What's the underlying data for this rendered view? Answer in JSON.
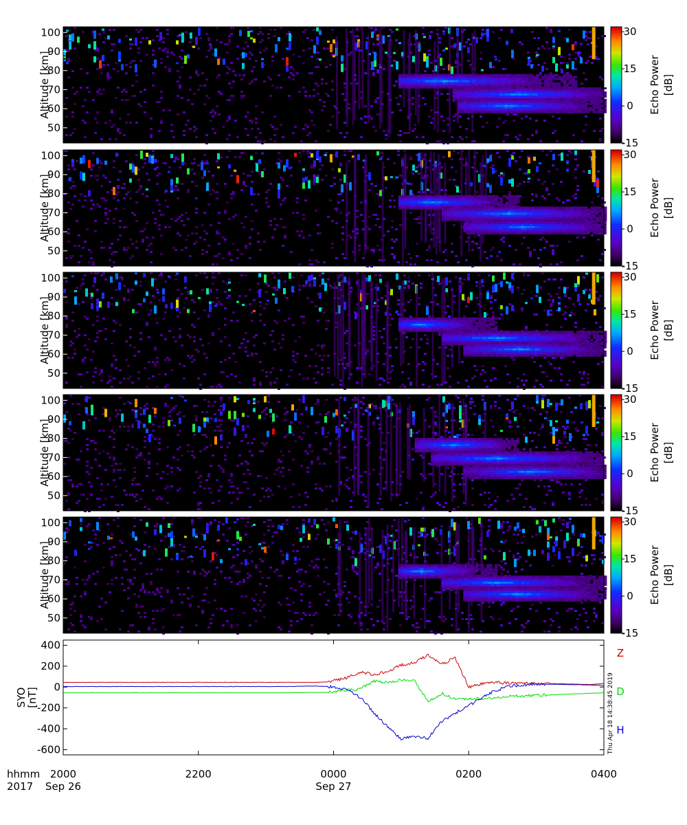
{
  "chart_data": [
    {
      "type": "heatmap",
      "panel": 1,
      "ylabel": "Altitude [km]",
      "yticks": [
        50,
        60,
        70,
        80,
        90,
        100
      ],
      "ylim": [
        42,
        103
      ],
      "colorbar": {
        "label1": "Echo Power",
        "label2": "[dB]",
        "ticks": [
          -15,
          0,
          15,
          30
        ],
        "range": [
          -15,
          32
        ]
      },
      "echo_layers": [
        {
          "start_frac": 0.62,
          "end_frac": 0.95,
          "alt_km": 75,
          "peak_frac": 0.7
        },
        {
          "start_frac": 0.72,
          "end_frac": 1.0,
          "alt_km": 68,
          "peak_frac": 0.84
        },
        {
          "start_frac": 0.73,
          "end_frac": 1.0,
          "alt_km": 62,
          "peak_frac": 0.82
        }
      ]
    },
    {
      "type": "heatmap",
      "panel": 2,
      "ylabel": "Altitude [km]",
      "yticks": [
        50,
        60,
        70,
        80,
        90,
        100
      ],
      "ylim": [
        42,
        103
      ],
      "colorbar": {
        "label1": "Echo Power",
        "label2": "[dB]",
        "ticks": [
          -15,
          0,
          15,
          30
        ],
        "range": [
          -15,
          32
        ]
      },
      "echo_layers": [
        {
          "start_frac": 0.62,
          "end_frac": 0.84,
          "alt_km": 76,
          "peak_frac": 0.68
        },
        {
          "start_frac": 0.7,
          "end_frac": 1.0,
          "alt_km": 70,
          "peak_frac": 0.82
        },
        {
          "start_frac": 0.74,
          "end_frac": 1.0,
          "alt_km": 63,
          "peak_frac": 0.85
        }
      ]
    },
    {
      "type": "heatmap",
      "panel": 3,
      "ylabel": "Altitude [km]",
      "yticks": [
        50,
        60,
        70,
        80,
        90,
        100
      ],
      "ylim": [
        42,
        103
      ],
      "colorbar": {
        "label1": "Echo Power",
        "label2": "[dB]",
        "ticks": [
          -15,
          0,
          15,
          30
        ],
        "range": [
          -15,
          32
        ]
      },
      "echo_layers": [
        {
          "start_frac": 0.62,
          "end_frac": 0.8,
          "alt_km": 76,
          "peak_frac": 0.66
        },
        {
          "start_frac": 0.7,
          "end_frac": 1.0,
          "alt_km": 69,
          "peak_frac": 0.8
        },
        {
          "start_frac": 0.74,
          "end_frac": 1.0,
          "alt_km": 63,
          "peak_frac": 0.84
        }
      ]
    },
    {
      "type": "heatmap",
      "panel": 4,
      "ylabel": "Altitude [km]",
      "yticks": [
        50,
        60,
        70,
        80,
        90,
        100
      ],
      "ylim": [
        42,
        103
      ],
      "colorbar": {
        "label1": "Echo Power",
        "label2": "[dB]",
        "ticks": [
          -15,
          0,
          15,
          30
        ],
        "range": [
          -15,
          32
        ]
      },
      "echo_layers": [
        {
          "start_frac": 0.65,
          "end_frac": 0.84,
          "alt_km": 77,
          "peak_frac": 0.72
        },
        {
          "start_frac": 0.68,
          "end_frac": 1.0,
          "alt_km": 70,
          "peak_frac": 0.8
        },
        {
          "start_frac": 0.74,
          "end_frac": 1.0,
          "alt_km": 63,
          "peak_frac": 0.86
        }
      ]
    },
    {
      "type": "heatmap",
      "panel": 5,
      "ylabel": "Altitude [km]",
      "yticks": [
        50,
        60,
        70,
        80,
        90,
        100
      ],
      "ylim": [
        42,
        103
      ],
      "colorbar": {
        "label1": "Echo Power",
        "label2": "[dB]",
        "ticks": [
          -15,
          0,
          15,
          30
        ],
        "range": [
          -15,
          32
        ]
      },
      "echo_layers": [
        {
          "start_frac": 0.62,
          "end_frac": 0.8,
          "alt_km": 75,
          "peak_frac": 0.66
        },
        {
          "start_frac": 0.7,
          "end_frac": 1.0,
          "alt_km": 69,
          "peak_frac": 0.8
        },
        {
          "start_frac": 0.74,
          "end_frac": 1.0,
          "alt_km": 63,
          "peak_frac": 0.84
        }
      ]
    },
    {
      "type": "line",
      "panel": 6,
      "ylabel_lines": [
        "SYO",
        "[nT]"
      ],
      "yticks": [
        400,
        200,
        0,
        -200,
        -400,
        -600
      ],
      "ylim": [
        -650,
        450
      ],
      "timestamp": "Thu Apr 18 14:38:45 2019",
      "x_hours": [
        20.0,
        23.3,
        23.7,
        23.9,
        24.0,
        24.2,
        24.4,
        24.6,
        24.8,
        25.0,
        25.2,
        25.4,
        25.6,
        25.8,
        26.0,
        26.3,
        26.6,
        27.0,
        27.4,
        27.8,
        28.0
      ],
      "series": [
        {
          "name": "Z",
          "color": "#cc0000",
          "values": [
            45,
            45,
            45,
            48,
            60,
            90,
            140,
            120,
            150,
            210,
            230,
            310,
            220,
            280,
            0,
            45,
            40,
            35,
            30,
            25,
            35
          ]
        },
        {
          "name": "D",
          "color": "#00dd00",
          "values": [
            -55,
            -55,
            -52,
            -50,
            -45,
            -30,
            -20,
            60,
            40,
            70,
            60,
            -140,
            -60,
            -120,
            -110,
            -110,
            -90,
            -80,
            -70,
            -60,
            -55
          ]
        },
        {
          "name": "H",
          "color": "#0000cc",
          "values": [
            5,
            5,
            10,
            5,
            0,
            -20,
            -100,
            -250,
            -380,
            -500,
            -470,
            -490,
            -330,
            -250,
            -180,
            -60,
            10,
            30,
            25,
            20,
            15
          ]
        }
      ]
    }
  ],
  "x_axis": {
    "header_top": "hhmm",
    "header_bottom": "2017",
    "ticks": [
      {
        "hour": 20,
        "label": "2000",
        "date": "Sep 26"
      },
      {
        "hour": 22,
        "label": "2200",
        "date": ""
      },
      {
        "hour": 24,
        "label": "0000",
        "date": "Sep 27"
      },
      {
        "hour": 26,
        "label": "0200",
        "date": ""
      },
      {
        "hour": 28,
        "label": "0400",
        "date": ""
      }
    ],
    "range": [
      20,
      28
    ]
  }
}
